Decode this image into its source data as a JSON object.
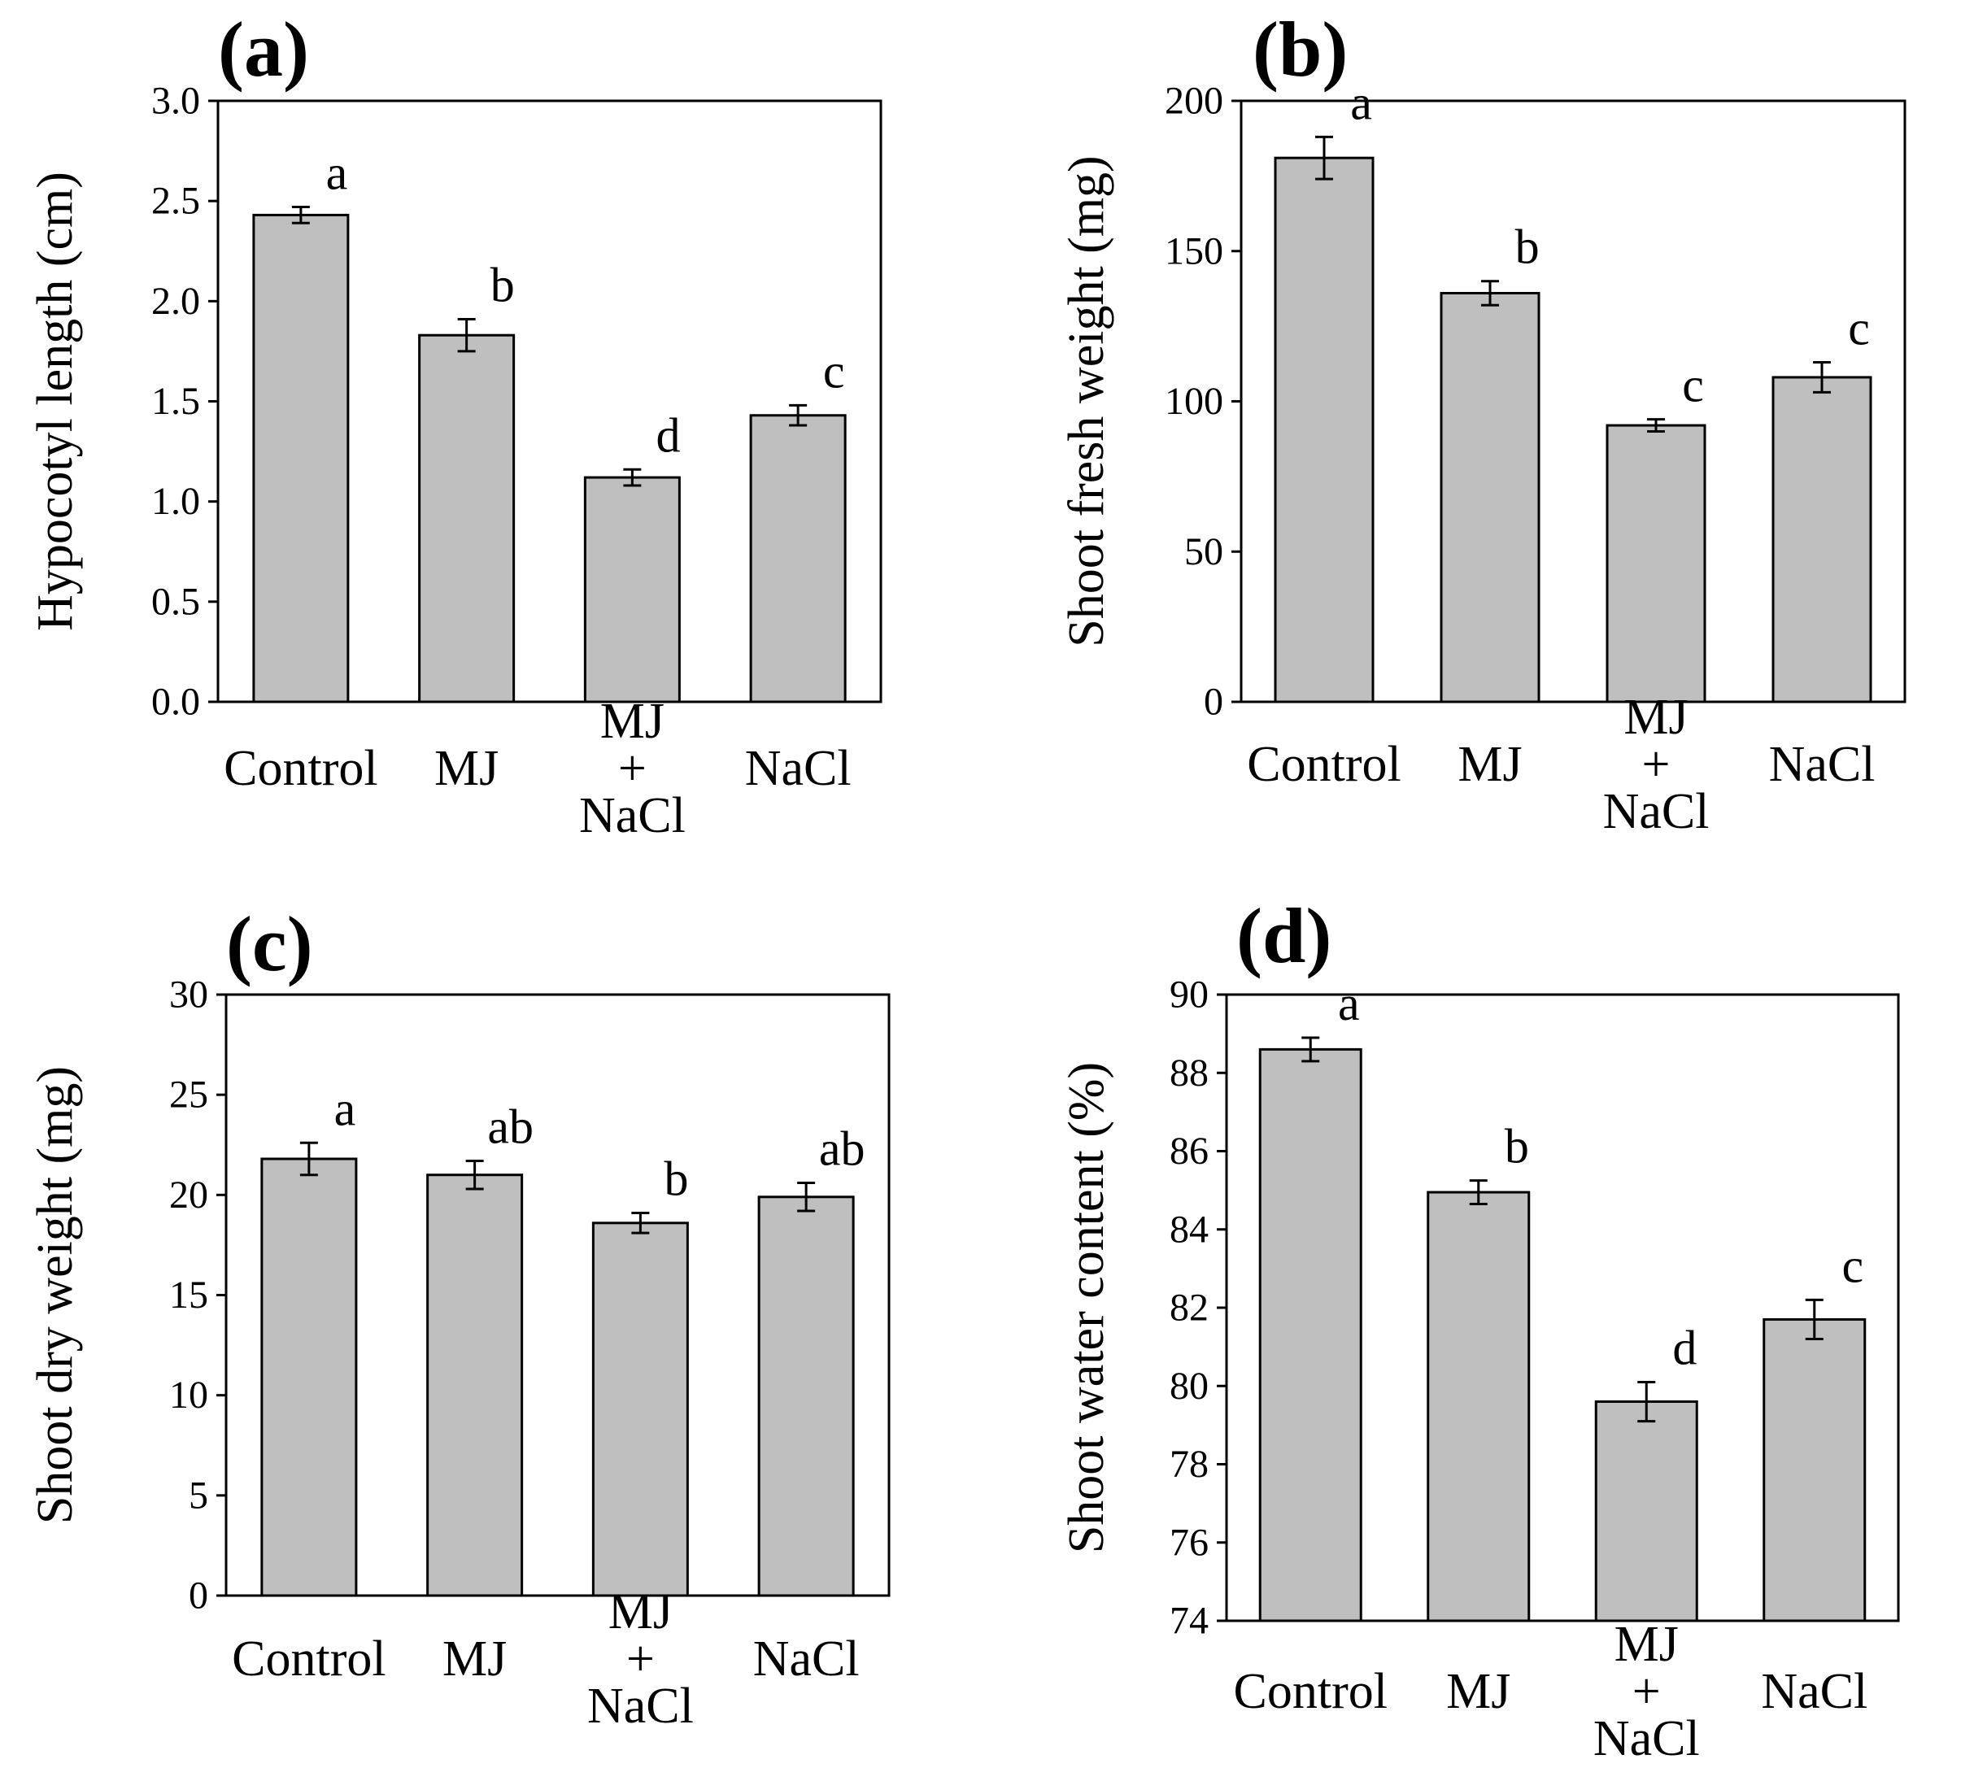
{
  "colors": {
    "bar_fill": "#bfbfbf",
    "stroke": "#000000",
    "background": "#ffffff"
  },
  "chart_data": [
    {
      "type": "bar",
      "panel_label": "(a)",
      "ylabel": "Hypocotyl length (cm)",
      "ylim": [
        0,
        3.0
      ],
      "ytick_values": [
        0,
        0.5,
        1.0,
        1.5,
        2.0,
        2.5,
        3.0
      ],
      "ytick_labels": [
        "0.0",
        "0.5",
        "1.0",
        "1.5",
        "2.0",
        "2.5",
        "3.0"
      ],
      "categories": [
        [
          "Control"
        ],
        [
          "MJ"
        ],
        [
          "MJ",
          "+",
          "NaCl"
        ],
        [
          "NaCl"
        ]
      ],
      "values": [
        2.43,
        1.83,
        1.12,
        1.43
      ],
      "errors": [
        0.04,
        0.08,
        0.04,
        0.05
      ],
      "significance": [
        "a",
        "b",
        "d",
        "c"
      ],
      "grid": false
    },
    {
      "type": "bar",
      "panel_label": "(b)",
      "ylabel": "Shoot fresh weight (mg)",
      "ylim": [
        0,
        200
      ],
      "ytick_values": [
        0,
        50,
        100,
        150,
        200
      ],
      "ytick_labels": [
        "0",
        "50",
        "100",
        "150",
        "200"
      ],
      "categories": [
        [
          "Control"
        ],
        [
          "MJ"
        ],
        [
          "MJ",
          "+",
          "NaCl"
        ],
        [
          "NaCl"
        ]
      ],
      "values": [
        181,
        136,
        92,
        108
      ],
      "errors": [
        7,
        4,
        2,
        5
      ],
      "significance": [
        "a",
        "b",
        "c",
        "c"
      ],
      "grid": false
    },
    {
      "type": "bar",
      "panel_label": "(c)",
      "ylabel": "Shoot dry weight (mg)",
      "ylim": [
        0,
        30
      ],
      "ytick_values": [
        0,
        5,
        10,
        15,
        20,
        25,
        30
      ],
      "ytick_labels": [
        "0",
        "5",
        "10",
        "15",
        "20",
        "25",
        "30"
      ],
      "categories": [
        [
          "Control"
        ],
        [
          "MJ"
        ],
        [
          "MJ",
          "+",
          "NaCl"
        ],
        [
          "NaCl"
        ]
      ],
      "values": [
        21.8,
        21.0,
        18.6,
        19.9
      ],
      "errors": [
        0.8,
        0.7,
        0.5,
        0.7
      ],
      "significance": [
        "a",
        "ab",
        "b",
        "ab"
      ],
      "grid": false
    },
    {
      "type": "bar",
      "panel_label": "(d)",
      "ylabel": "Shoot water content (%)",
      "ylim": [
        74,
        90
      ],
      "ytick_values": [
        74,
        76,
        78,
        80,
        82,
        84,
        86,
        88,
        90
      ],
      "ytick_labels": [
        "74",
        "76",
        "78",
        "80",
        "82",
        "84",
        "86",
        "88",
        "90"
      ],
      "categories": [
        [
          "Control"
        ],
        [
          "MJ"
        ],
        [
          "MJ",
          "+",
          "NaCl"
        ],
        [
          "NaCl"
        ]
      ],
      "values": [
        88.6,
        84.95,
        79.6,
        81.7
      ],
      "errors": [
        0.3,
        0.3,
        0.5,
        0.5
      ],
      "significance": [
        "a",
        "b",
        "d",
        "c"
      ],
      "grid": false
    }
  ]
}
